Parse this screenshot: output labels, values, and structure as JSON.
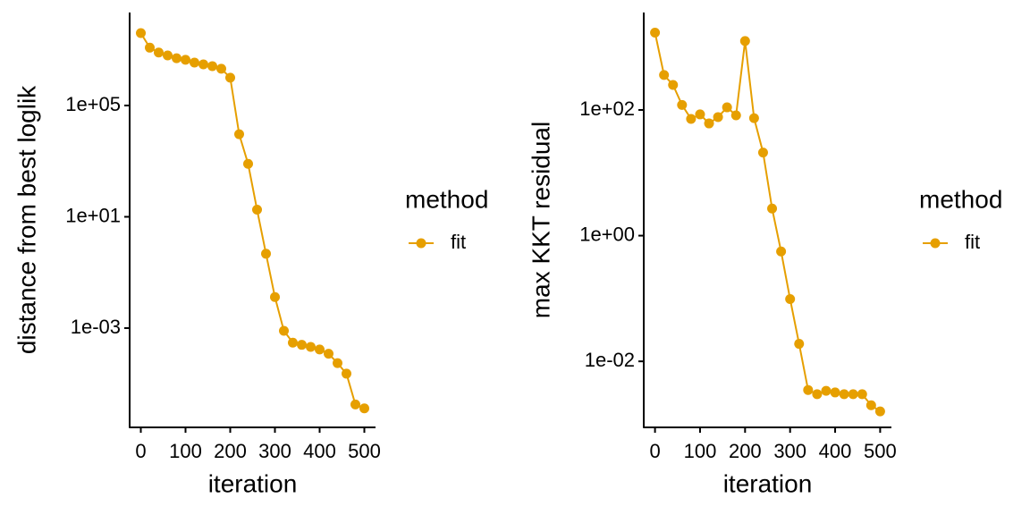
{
  "chart_data": [
    {
      "type": "line",
      "xlabel": "iteration",
      "ylabel": "distance from best loglik",
      "legend_title": "method",
      "log_y": true,
      "x": [
        0,
        20,
        40,
        60,
        80,
        100,
        120,
        140,
        160,
        180,
        200,
        220,
        240,
        260,
        280,
        300,
        320,
        340,
        360,
        380,
        400,
        420,
        440,
        460,
        480,
        500
      ],
      "series": [
        {
          "name": "fit",
          "color": "#E69F00",
          "values": [
            40000000.0,
            12000000.0,
            8000000.0,
            6300000.0,
            5000000.0,
            4400000.0,
            3500000.0,
            3000000.0,
            2600000.0,
            2100000.0,
            1000000.0,
            9300,
            800,
            18,
            0.47,
            0.013,
            0.0008,
            0.0003,
            0.00025,
            0.00021,
            0.00017,
            0.00012,
            5.5e-05,
            2.3e-05,
            1.8e-06,
            1.3e-06
          ]
        }
      ],
      "xlim": [
        -25,
        525
      ],
      "xticks": [
        0,
        100,
        200,
        300,
        400,
        500
      ],
      "ylim": [
        2.7e-07,
        220000000.0
      ],
      "yticks": [
        {
          "value": 0.001,
          "label": "1e-03"
        },
        {
          "value": 10,
          "label": "1e+01"
        },
        {
          "value": 100000,
          "label": "1e+05"
        }
      ]
    },
    {
      "type": "line",
      "xlabel": "iteration",
      "ylabel": "max KKT residual",
      "legend_title": "method",
      "log_y": true,
      "x": [
        0,
        20,
        40,
        60,
        80,
        100,
        120,
        140,
        160,
        180,
        200,
        220,
        240,
        260,
        280,
        300,
        320,
        340,
        360,
        380,
        400,
        420,
        440,
        460,
        480,
        500
      ],
      "series": [
        {
          "name": "fit",
          "color": "#E69F00",
          "values": [
            1700,
            360,
            250,
            120,
            72,
            85,
            61,
            77,
            110,
            82,
            1250,
            74,
            21,
            2.7,
            0.56,
            0.098,
            0.019,
            0.0035,
            0.003,
            0.0034,
            0.0032,
            0.003,
            0.003,
            0.003,
            0.002,
            0.0016
          ]
        }
      ],
      "xlim": [
        -25,
        525
      ],
      "xticks": [
        0,
        100,
        200,
        300,
        400,
        500
      ],
      "ylim": [
        0.00089,
        3550
      ],
      "yticks": [
        {
          "value": 0.01,
          "label": "1e-02"
        },
        {
          "value": 1,
          "label": "1e+00"
        },
        {
          "value": 100,
          "label": "1e+02"
        }
      ]
    }
  ]
}
